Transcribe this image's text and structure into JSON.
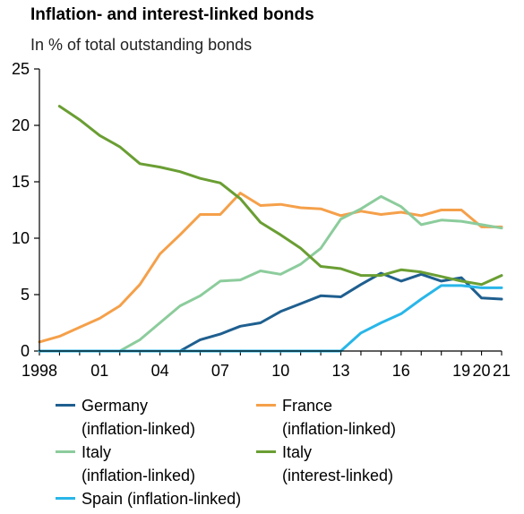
{
  "chart_data": {
    "type": "line",
    "title": "Inflation- and interest-linked bonds",
    "subtitle": "In % of total outstanding bonds",
    "ylim": [
      0,
      25
    ],
    "yticks": [
      "0",
      "5",
      "10",
      "15",
      "20",
      "25"
    ],
    "xlim": [
      1998,
      2021
    ],
    "xticks": [
      {
        "x": 1998,
        "label": "1998"
      },
      {
        "x": 2001,
        "label": "01"
      },
      {
        "x": 2004,
        "label": "04"
      },
      {
        "x": 2007,
        "label": "07"
      },
      {
        "x": 2010,
        "label": "10"
      },
      {
        "x": 2013,
        "label": "13"
      },
      {
        "x": 2016,
        "label": "16"
      },
      {
        "x": 2019,
        "label": "19"
      },
      {
        "x": 2020,
        "label": "20"
      },
      {
        "x": 2021,
        "label": "21"
      }
    ],
    "series": [
      {
        "id": "germany",
        "name_line1": "Germany",
        "name_line2": "(inflation-linked)",
        "color": "#1f5f8f",
        "x": [
          1998,
          1999,
          2000,
          2001,
          2002,
          2003,
          2004,
          2005,
          2006,
          2007,
          2008,
          2009,
          2010,
          2011,
          2012,
          2013,
          2014,
          2015,
          2016,
          2017,
          2018,
          2019,
          2020,
          2021
        ],
        "values": [
          0,
          0,
          0,
          0,
          0,
          0,
          0,
          0,
          1.0,
          1.5,
          2.2,
          2.5,
          3.5,
          4.2,
          4.9,
          4.8,
          5.9,
          6.9,
          6.2,
          6.8,
          6.2,
          6.5,
          4.7,
          4.6
        ]
      },
      {
        "id": "france",
        "name_line1": "France",
        "name_line2": "(inflation-linked)",
        "color": "#f5a04a",
        "x": [
          1998,
          1999,
          2000,
          2001,
          2002,
          2003,
          2004,
          2005,
          2006,
          2007,
          2008,
          2009,
          2010,
          2011,
          2012,
          2013,
          2014,
          2015,
          2016,
          2017,
          2018,
          2019,
          2020,
          2021
        ],
        "values": [
          0.8,
          1.3,
          2.1,
          2.9,
          4.0,
          5.9,
          8.6,
          10.3,
          12.1,
          12.1,
          14.0,
          12.9,
          13.0,
          12.7,
          12.6,
          12.0,
          12.4,
          12.1,
          12.3,
          12.0,
          12.5,
          12.5,
          11.0,
          11.0
        ]
      },
      {
        "id": "italy-inflation",
        "name_line1": "Italy",
        "name_line2": "(inflation-linked)",
        "color": "#8ccc9c",
        "x": [
          1998,
          1999,
          2000,
          2001,
          2002,
          2003,
          2004,
          2005,
          2006,
          2007,
          2008,
          2009,
          2010,
          2011,
          2012,
          2013,
          2014,
          2015,
          2016,
          2017,
          2018,
          2019,
          2020,
          2021
        ],
        "values": [
          0,
          0,
          0,
          0,
          0,
          1.0,
          2.5,
          4.0,
          4.9,
          6.2,
          6.3,
          7.1,
          6.8,
          7.7,
          9.1,
          11.7,
          12.6,
          13.7,
          12.8,
          11.2,
          11.6,
          11.5,
          11.2,
          10.9
        ]
      },
      {
        "id": "italy-interest",
        "name_line1": "Italy",
        "name_line2": "(interest-linked)",
        "color": "#6a9e33",
        "x": [
          1999,
          2000,
          2001,
          2002,
          2003,
          2004,
          2005,
          2006,
          2007,
          2008,
          2009,
          2010,
          2011,
          2012,
          2013,
          2014,
          2015,
          2016,
          2017,
          2018,
          2019,
          2020,
          2021
        ],
        "values": [
          21.7,
          20.5,
          19.1,
          18.1,
          16.6,
          16.3,
          15.9,
          15.3,
          14.9,
          13.5,
          11.4,
          10.3,
          9.1,
          7.5,
          7.3,
          6.7,
          6.7,
          7.2,
          7.0,
          6.6,
          6.2,
          5.9,
          6.7
        ]
      },
      {
        "id": "spain",
        "name_line1": "Spain (inflation-linked)",
        "name_line2": "",
        "color": "#29b6e8",
        "x": [
          1998,
          1999,
          2000,
          2001,
          2002,
          2003,
          2004,
          2005,
          2006,
          2007,
          2008,
          2009,
          2010,
          2011,
          2012,
          2013,
          2014,
          2015,
          2016,
          2017,
          2018,
          2019,
          2020,
          2021
        ],
        "values": [
          0,
          0,
          0,
          0,
          0,
          0,
          0,
          0,
          0,
          0,
          0,
          0,
          0,
          0,
          0,
          0,
          1.6,
          2.5,
          3.3,
          4.6,
          5.8,
          5.8,
          5.6,
          5.6
        ]
      }
    ]
  }
}
